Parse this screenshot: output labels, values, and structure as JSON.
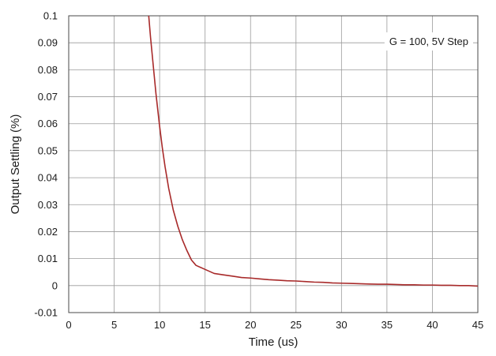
{
  "chart_data": {
    "type": "line",
    "title": "",
    "xlabel": "Time (us)",
    "ylabel": "Output Settling (%)",
    "xlim": [
      0,
      45
    ],
    "ylim": [
      -0.01,
      0.1
    ],
    "x_ticks": [
      0,
      5,
      10,
      15,
      20,
      25,
      30,
      35,
      40,
      45
    ],
    "y_ticks": [
      -0.01,
      0,
      0.01,
      0.02,
      0.03,
      0.04,
      0.05,
      0.06,
      0.07,
      0.08,
      0.09,
      0.1
    ],
    "x_tick_labels": [
      "0",
      "5",
      "10",
      "15",
      "20",
      "25",
      "30",
      "35",
      "40",
      "45"
    ],
    "y_tick_labels": [
      "-0.01",
      "0",
      "0.01",
      "0.02",
      "0.03",
      "0.04",
      "0.05",
      "0.06",
      "0.07",
      "0.08",
      "0.09",
      "0.1"
    ],
    "grid": true,
    "legend_position": "top-right",
    "annotation": "G = 100, 5V Step",
    "series": [
      {
        "color": "#a82a2a",
        "x": [
          8.8,
          9.0,
          9.2,
          9.4,
          9.6,
          9.8,
          10.0,
          10.3,
          10.6,
          11.0,
          11.5,
          12.0,
          12.5,
          13.0,
          13.5,
          14.0,
          15.0,
          16.0,
          17.0,
          18.0,
          19.0,
          20.0,
          21.0,
          22.0,
          23.0,
          24.0,
          25.0,
          26.0,
          27.0,
          28.0,
          29.0,
          30.0,
          31.0,
          32.0,
          33.0,
          34.0,
          35.0,
          36.0,
          37.0,
          38.0,
          39.0,
          40.0,
          41.0,
          42.0,
          43.0,
          44.0,
          45.0
        ],
        "y": [
          0.1,
          0.092,
          0.085,
          0.078,
          0.071,
          0.065,
          0.059,
          0.051,
          0.044,
          0.036,
          0.028,
          0.022,
          0.017,
          0.013,
          0.0095,
          0.0075,
          0.006,
          0.0045,
          0.004,
          0.0035,
          0.003,
          0.0028,
          0.0025,
          0.0022,
          0.002,
          0.0018,
          0.0017,
          0.0015,
          0.0013,
          0.0012,
          0.001,
          0.0009,
          0.0008,
          0.0007,
          0.0006,
          0.0005,
          0.0005,
          0.0004,
          0.0003,
          0.0003,
          0.0002,
          0.0002,
          0.0001,
          0.0001,
          0.0,
          0.0,
          -0.0002
        ]
      }
    ]
  }
}
